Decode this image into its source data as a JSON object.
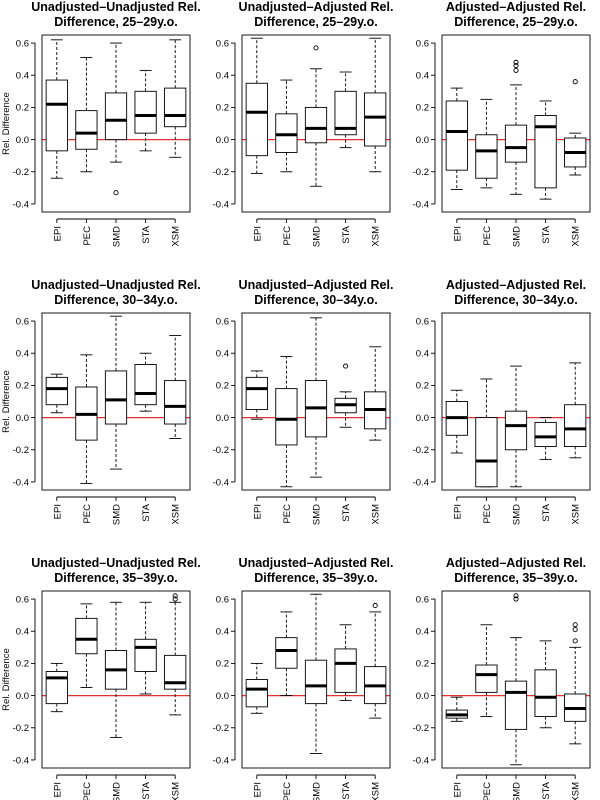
{
  "chart_data": [
    {
      "type": "box",
      "title_lines": [
        "Unadjusted–Unadjusted Rel.",
        "Difference, 25–29y.o."
      ],
      "ylabel": "Rel. Difference",
      "ylim": [
        -0.45,
        0.65
      ],
      "yticks": [
        -0.4,
        -0.2,
        0.0,
        0.2,
        0.4,
        0.6
      ],
      "reference_line": 0,
      "reference_color": "#e53030",
      "categories": [
        "EPI",
        "PEC",
        "SMD",
        "STA",
        "XSM"
      ],
      "boxes": [
        {
          "min": -0.24,
          "q1": -0.07,
          "median": 0.22,
          "q3": 0.37,
          "max": 0.62,
          "outliers": []
        },
        {
          "min": -0.2,
          "q1": -0.06,
          "median": 0.04,
          "q3": 0.18,
          "max": 0.51,
          "outliers": []
        },
        {
          "min": -0.14,
          "q1": 0.0,
          "median": 0.12,
          "q3": 0.29,
          "max": 0.6,
          "outliers": [
            -0.33
          ]
        },
        {
          "min": -0.07,
          "q1": 0.04,
          "median": 0.15,
          "q3": 0.3,
          "max": 0.43,
          "outliers": []
        },
        {
          "min": -0.11,
          "q1": 0.08,
          "median": 0.15,
          "q3": 0.32,
          "max": 0.62,
          "outliers": []
        }
      ]
    },
    {
      "type": "box",
      "title_lines": [
        "Unadjusted–Adjusted Rel.",
        "Difference, 25–29y.o."
      ],
      "ylabel": "",
      "ylim": [
        -0.45,
        0.65
      ],
      "yticks": [
        -0.4,
        -0.2,
        0.0,
        0.2,
        0.4,
        0.6
      ],
      "reference_line": 0,
      "reference_color": "#e53030",
      "categories": [
        "EPI",
        "PEC",
        "SMD",
        "STA",
        "XSM"
      ],
      "boxes": [
        {
          "min": -0.21,
          "q1": -0.1,
          "median": 0.17,
          "q3": 0.35,
          "max": 0.63,
          "outliers": []
        },
        {
          "min": -0.2,
          "q1": -0.08,
          "median": 0.03,
          "q3": 0.16,
          "max": 0.37,
          "outliers": []
        },
        {
          "min": -0.29,
          "q1": -0.02,
          "median": 0.07,
          "q3": 0.2,
          "max": 0.44,
          "outliers": [
            0.57
          ]
        },
        {
          "min": -0.05,
          "q1": 0.03,
          "median": 0.07,
          "q3": 0.3,
          "max": 0.42,
          "outliers": []
        },
        {
          "min": -0.2,
          "q1": -0.04,
          "median": 0.14,
          "q3": 0.29,
          "max": 0.63,
          "outliers": []
        }
      ]
    },
    {
      "type": "box",
      "title_lines": [
        "Adjusted–Adjusted Rel.",
        "Difference, 25–29y.o."
      ],
      "ylabel": "",
      "ylim": [
        -0.45,
        0.65
      ],
      "yticks": [
        -0.4,
        -0.2,
        0.0,
        0.2,
        0.4,
        0.6
      ],
      "reference_line": 0,
      "reference_color": "#e53030",
      "categories": [
        "EPI",
        "PEC",
        "SMD",
        "STA",
        "XSM"
      ],
      "boxes": [
        {
          "min": -0.31,
          "q1": -0.19,
          "median": 0.05,
          "q3": 0.24,
          "max": 0.32,
          "outliers": []
        },
        {
          "min": -0.3,
          "q1": -0.24,
          "median": -0.07,
          "q3": 0.03,
          "max": 0.25,
          "outliers": []
        },
        {
          "min": -0.34,
          "q1": -0.14,
          "median": -0.05,
          "q3": 0.09,
          "max": 0.34,
          "outliers": [
            0.43,
            0.46,
            0.48
          ]
        },
        {
          "min": -0.37,
          "q1": -0.3,
          "median": 0.08,
          "q3": 0.15,
          "max": 0.24,
          "outliers": []
        },
        {
          "min": -0.22,
          "q1": -0.17,
          "median": -0.08,
          "q3": 0.01,
          "max": 0.04,
          "outliers": [
            0.36
          ]
        }
      ]
    },
    {
      "type": "box",
      "title_lines": [
        "Unadjusted–Unadjusted Rel.",
        "Difference, 30–34y.o."
      ],
      "ylabel": "Rel. Difference",
      "ylim": [
        -0.45,
        0.65
      ],
      "yticks": [
        -0.4,
        -0.2,
        0.0,
        0.2,
        0.4,
        0.6
      ],
      "reference_line": 0,
      "reference_color": "#e53030",
      "categories": [
        "EPI",
        "PEC",
        "SMD",
        "STA",
        "XSM"
      ],
      "boxes": [
        {
          "min": 0.03,
          "q1": 0.08,
          "median": 0.18,
          "q3": 0.25,
          "max": 0.27,
          "outliers": []
        },
        {
          "min": -0.41,
          "q1": -0.14,
          "median": 0.02,
          "q3": 0.19,
          "max": 0.39,
          "outliers": []
        },
        {
          "min": -0.32,
          "q1": -0.04,
          "median": 0.11,
          "q3": 0.29,
          "max": 0.63,
          "outliers": []
        },
        {
          "min": 0.04,
          "q1": 0.08,
          "median": 0.15,
          "q3": 0.33,
          "max": 0.4,
          "outliers": []
        },
        {
          "min": -0.13,
          "q1": -0.04,
          "median": 0.07,
          "q3": 0.23,
          "max": 0.51,
          "outliers": []
        }
      ]
    },
    {
      "type": "box",
      "title_lines": [
        "Unadjusted–Adjusted Rel.",
        "Difference, 30–34y.o."
      ],
      "ylabel": "",
      "ylim": [
        -0.45,
        0.65
      ],
      "yticks": [
        -0.4,
        -0.2,
        0.0,
        0.2,
        0.4,
        0.6
      ],
      "reference_line": 0,
      "reference_color": "#e53030",
      "categories": [
        "EPI",
        "PEC",
        "SMD",
        "STA",
        "XSM"
      ],
      "boxes": [
        {
          "min": -0.01,
          "q1": 0.05,
          "median": 0.18,
          "q3": 0.25,
          "max": 0.29,
          "outliers": []
        },
        {
          "min": -0.43,
          "q1": -0.17,
          "median": -0.01,
          "q3": 0.18,
          "max": 0.38,
          "outliers": []
        },
        {
          "min": -0.37,
          "q1": -0.12,
          "median": 0.06,
          "q3": 0.23,
          "max": 0.62,
          "outliers": []
        },
        {
          "min": -0.06,
          "q1": 0.03,
          "median": 0.08,
          "q3": 0.12,
          "max": 0.16,
          "outliers": [
            0.32
          ]
        },
        {
          "min": -0.14,
          "q1": -0.07,
          "median": 0.05,
          "q3": 0.16,
          "max": 0.44,
          "outliers": []
        }
      ]
    },
    {
      "type": "box",
      "title_lines": [
        "Adjusted–Adjusted Rel.",
        "Difference, 30–34y.o."
      ],
      "ylabel": "",
      "ylim": [
        -0.45,
        0.65
      ],
      "yticks": [
        -0.4,
        -0.2,
        0.0,
        0.2,
        0.4,
        0.6
      ],
      "reference_line": 0,
      "reference_color": "#e53030",
      "categories": [
        "EPI",
        "PEC",
        "SMD",
        "STA",
        "XSM"
      ],
      "boxes": [
        {
          "min": -0.22,
          "q1": -0.11,
          "median": 0.0,
          "q3": 0.1,
          "max": 0.17,
          "outliers": []
        },
        {
          "min": -0.43,
          "q1": -0.43,
          "median": -0.27,
          "q3": 0.0,
          "max": 0.24,
          "outliers": []
        },
        {
          "min": -0.43,
          "q1": -0.2,
          "median": -0.05,
          "q3": 0.04,
          "max": 0.32,
          "outliers": []
        },
        {
          "min": -0.26,
          "q1": -0.18,
          "median": -0.12,
          "q3": -0.03,
          "max": 0.0,
          "outliers": []
        },
        {
          "min": -0.25,
          "q1": -0.18,
          "median": -0.07,
          "q3": 0.08,
          "max": 0.34,
          "outliers": []
        }
      ]
    },
    {
      "type": "box",
      "title_lines": [
        "Unadjusted–Unadjusted Rel.",
        "Difference, 35–39y.o."
      ],
      "ylabel": "Rel. Difference",
      "ylim": [
        -0.45,
        0.65
      ],
      "yticks": [
        -0.4,
        -0.2,
        0.0,
        0.2,
        0.4,
        0.6
      ],
      "reference_line": 0,
      "reference_color": "#e53030",
      "categories": [
        "EPI",
        "PEC",
        "SMD",
        "STA",
        "XSM"
      ],
      "boxes": [
        {
          "min": -0.1,
          "q1": -0.05,
          "median": 0.11,
          "q3": 0.15,
          "max": 0.2,
          "outliers": []
        },
        {
          "min": 0.05,
          "q1": 0.26,
          "median": 0.35,
          "q3": 0.48,
          "max": 0.57,
          "outliers": []
        },
        {
          "min": -0.26,
          "q1": 0.04,
          "median": 0.16,
          "q3": 0.28,
          "max": 0.58,
          "outliers": []
        },
        {
          "min": 0.01,
          "q1": 0.15,
          "median": 0.3,
          "q3": 0.35,
          "max": 0.58,
          "outliers": []
        },
        {
          "min": -0.12,
          "q1": 0.04,
          "median": 0.08,
          "q3": 0.25,
          "max": 0.58,
          "outliers": [
            0.6,
            0.62
          ]
        }
      ]
    },
    {
      "type": "box",
      "title_lines": [
        "Unadjusted–Adjusted Rel.",
        "Difference, 35–39y.o."
      ],
      "ylabel": "",
      "ylim": [
        -0.45,
        0.65
      ],
      "yticks": [
        -0.4,
        -0.2,
        0.0,
        0.2,
        0.4,
        0.6
      ],
      "reference_line": 0,
      "reference_color": "#e53030",
      "categories": [
        "EPI",
        "PEC",
        "SMD",
        "STA",
        "XSM"
      ],
      "boxes": [
        {
          "min": -0.11,
          "q1": -0.07,
          "median": 0.04,
          "q3": 0.1,
          "max": 0.2,
          "outliers": []
        },
        {
          "min": 0.0,
          "q1": 0.17,
          "median": 0.28,
          "q3": 0.36,
          "max": 0.52,
          "outliers": []
        },
        {
          "min": -0.36,
          "q1": -0.05,
          "median": 0.06,
          "q3": 0.22,
          "max": 0.63,
          "outliers": []
        },
        {
          "min": -0.03,
          "q1": 0.02,
          "median": 0.2,
          "q3": 0.29,
          "max": 0.44,
          "outliers": []
        },
        {
          "min": -0.14,
          "q1": -0.05,
          "median": 0.06,
          "q3": 0.18,
          "max": 0.52,
          "outliers": [
            0.56
          ]
        }
      ]
    },
    {
      "type": "box",
      "title_lines": [
        "Adjusted–Adjusted Rel.",
        "Difference, 35–39y.o."
      ],
      "ylabel": "",
      "ylim": [
        -0.45,
        0.65
      ],
      "yticks": [
        -0.4,
        -0.2,
        0.0,
        0.2,
        0.4,
        0.6
      ],
      "reference_line": 0,
      "reference_color": "#e53030",
      "categories": [
        "EPI",
        "PEC",
        "SMD",
        "STA",
        "XSM"
      ],
      "boxes": [
        {
          "min": -0.16,
          "q1": -0.14,
          "median": -0.12,
          "q3": -0.09,
          "max": -0.01,
          "outliers": []
        },
        {
          "min": -0.13,
          "q1": 0.02,
          "median": 0.13,
          "q3": 0.19,
          "max": 0.44,
          "outliers": []
        },
        {
          "min": -0.43,
          "q1": -0.21,
          "median": 0.02,
          "q3": 0.09,
          "max": 0.36,
          "outliers": [
            0.6,
            0.62
          ]
        },
        {
          "min": -0.2,
          "q1": -0.13,
          "median": -0.01,
          "q3": 0.16,
          "max": 0.34,
          "outliers": []
        },
        {
          "min": -0.3,
          "q1": -0.16,
          "median": -0.08,
          "q3": 0.01,
          "max": 0.3,
          "outliers": [
            0.34,
            0.41,
            0.44
          ]
        }
      ]
    }
  ]
}
